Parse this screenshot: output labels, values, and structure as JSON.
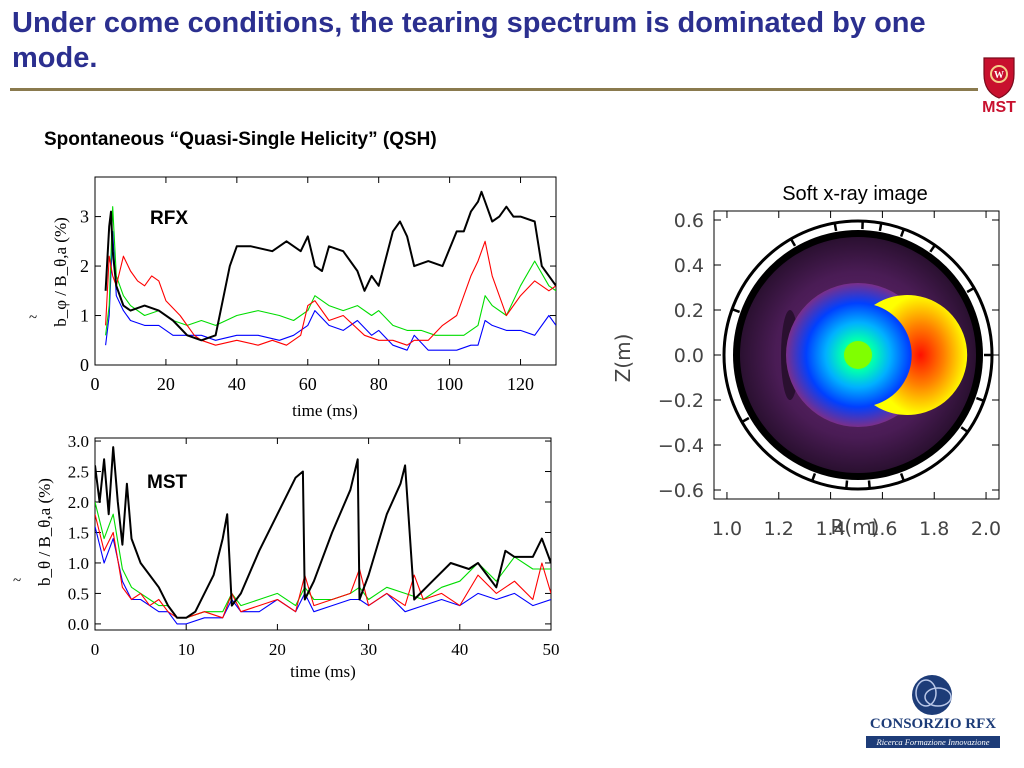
{
  "slide": {
    "title": "Under come conditions, the tearing spectrum is dominated by one mode.",
    "subtitle": "Spontaneous “Quasi-Single Helicity” (QSH)"
  },
  "logos": {
    "mst_label": "MST",
    "consorzio_name": "CONSORZIO RFX",
    "consorzio_tagline": "Ricerca Formazione Innovazione",
    "colors": {
      "badger_red": "#c8102e",
      "consorzio_blue": "#1d3c78"
    }
  },
  "chart_data": [
    {
      "type": "line",
      "label": "RFX",
      "xlabel": "time (ms)",
      "ylabel": "b_φ / B_θ,a (%)",
      "xlim": [
        0,
        130
      ],
      "ylim": [
        0,
        3.8
      ],
      "xticks": [
        "0",
        "20",
        "40",
        "60",
        "80",
        "100",
        "120"
      ],
      "yticks": [
        "0",
        "1",
        "2",
        "3"
      ],
      "colors": [
        "#000000",
        "#ff0000",
        "#00dd00",
        "#0000ff"
      ],
      "series": [
        {
          "x": [
            3,
            4,
            4.5,
            5,
            6,
            8,
            10,
            14,
            18,
            22,
            26,
            30,
            34,
            36,
            38,
            40,
            44,
            50,
            54,
            58,
            60,
            62,
            64,
            66,
            70,
            74,
            76,
            78,
            80,
            84,
            86,
            88,
            90,
            94,
            98,
            102,
            104,
            106,
            108,
            109,
            110,
            112,
            114,
            116,
            118,
            120,
            124,
            126,
            128,
            130
          ],
          "y": [
            1.5,
            2.8,
            3.1,
            2.3,
            1.6,
            1.2,
            1.1,
            1.2,
            1.1,
            0.9,
            0.6,
            0.5,
            0.6,
            1.3,
            2.0,
            2.4,
            2.4,
            2.3,
            2.5,
            2.3,
            2.6,
            2.0,
            1.9,
            2.4,
            2.3,
            1.9,
            1.5,
            1.8,
            1.6,
            2.7,
            2.9,
            2.6,
            2.0,
            2.1,
            2.0,
            2.7,
            2.7,
            3.1,
            3.3,
            3.5,
            3.3,
            2.9,
            3.0,
            3.2,
            3.0,
            3.0,
            2.9,
            2.0,
            1.8,
            1.6
          ]
        },
        {
          "x": [
            3,
            4,
            5,
            6,
            8,
            10,
            12,
            14,
            16,
            18,
            20,
            24,
            28,
            30,
            34,
            40,
            46,
            50,
            54,
            58,
            60,
            62,
            66,
            70,
            76,
            80,
            84,
            88,
            90,
            94,
            98,
            102,
            106,
            108,
            110,
            112,
            116,
            120,
            124,
            128,
            130
          ],
          "y": [
            0.8,
            2.2,
            1.8,
            1.6,
            2.2,
            1.9,
            1.7,
            1.6,
            1.8,
            1.7,
            1.3,
            1.0,
            0.6,
            0.5,
            0.4,
            0.5,
            0.4,
            0.5,
            0.4,
            0.6,
            1.2,
            1.3,
            0.9,
            1.0,
            0.6,
            0.5,
            0.5,
            0.4,
            0.5,
            0.5,
            0.8,
            1.0,
            1.8,
            2.1,
            2.5,
            1.8,
            1.0,
            1.4,
            1.7,
            1.5,
            1.6
          ]
        },
        {
          "x": [
            3,
            4,
            5,
            6,
            8,
            10,
            14,
            18,
            22,
            26,
            30,
            34,
            40,
            46,
            52,
            56,
            60,
            62,
            66,
            70,
            74,
            78,
            80,
            84,
            88,
            92,
            96,
            100,
            104,
            108,
            110,
            112,
            116,
            120,
            124,
            128,
            130
          ],
          "y": [
            0.6,
            1.2,
            3.2,
            1.8,
            1.4,
            1.2,
            1.0,
            1.1,
            0.9,
            0.8,
            0.9,
            0.8,
            1.0,
            1.1,
            1.0,
            0.9,
            1.1,
            1.4,
            1.2,
            1.1,
            1.2,
            1.0,
            1.1,
            0.8,
            0.7,
            0.7,
            0.6,
            0.6,
            0.6,
            0.8,
            1.4,
            1.2,
            1.0,
            1.6,
            2.1,
            1.6,
            1.5
          ]
        },
        {
          "x": [
            3,
            4,
            5,
            6,
            8,
            10,
            14,
            18,
            22,
            26,
            30,
            34,
            40,
            46,
            52,
            56,
            60,
            62,
            66,
            70,
            74,
            78,
            80,
            84,
            88,
            90,
            94,
            98,
            102,
            106,
            108,
            110,
            112,
            116,
            120,
            124,
            128,
            130
          ],
          "y": [
            0.4,
            1.0,
            2.7,
            1.4,
            1.1,
            0.9,
            0.8,
            0.8,
            0.6,
            0.6,
            0.6,
            0.5,
            0.6,
            0.6,
            0.5,
            0.6,
            0.8,
            1.1,
            0.8,
            0.7,
            0.9,
            0.6,
            0.7,
            0.4,
            0.3,
            0.6,
            0.3,
            0.3,
            0.3,
            0.4,
            0.4,
            0.9,
            0.8,
            0.7,
            0.7,
            0.6,
            1.0,
            0.8
          ]
        }
      ]
    },
    {
      "type": "line",
      "label": "MST",
      "xlabel": "time (ms)",
      "ylabel": "b_θ / B_θ,a (%)",
      "xlim": [
        0,
        50
      ],
      "ylim": [
        -0.1,
        3.05
      ],
      "xticks": [
        "0",
        "10",
        "20",
        "30",
        "40",
        "50"
      ],
      "yticks": [
        "0.0",
        "0.5",
        "1.0",
        "1.5",
        "2.0",
        "2.5",
        "3.0"
      ],
      "colors": [
        "#000000",
        "#ff0000",
        "#00dd00",
        "#0000ff"
      ],
      "series": [
        {
          "x": [
            0,
            0.5,
            1,
            1.5,
            2,
            2.5,
            3,
            3.5,
            4,
            5,
            6,
            7,
            8,
            9,
            10,
            11,
            13,
            14,
            14.5,
            15,
            16,
            18,
            20,
            22,
            22.8,
            23,
            24,
            26,
            28,
            28.8,
            29,
            30,
            32,
            33.5,
            34,
            35,
            37,
            39,
            41,
            42,
            44,
            45,
            46,
            48,
            49,
            50
          ],
          "y": [
            2.6,
            2.0,
            2.7,
            1.8,
            2.9,
            2.0,
            1.3,
            2.3,
            1.4,
            1.0,
            0.8,
            0.6,
            0.3,
            0.1,
            0.1,
            0.2,
            0.8,
            1.4,
            1.8,
            0.3,
            0.5,
            1.2,
            1.8,
            2.4,
            2.5,
            0.4,
            0.7,
            1.5,
            2.2,
            2.7,
            0.4,
            0.8,
            1.8,
            2.3,
            2.6,
            0.4,
            0.7,
            1.0,
            0.9,
            1.0,
            0.6,
            1.2,
            1.1,
            1.1,
            1.4,
            1.0
          ]
        },
        {
          "x": [
            0,
            1,
            2,
            3,
            4,
            5,
            6,
            7,
            8,
            9,
            10,
            12,
            14,
            15,
            16,
            18,
            20,
            22,
            23,
            24,
            26,
            28,
            29,
            30,
            32,
            34,
            35,
            36,
            38,
            40,
            42,
            44,
            46,
            48,
            49,
            50
          ],
          "y": [
            1.8,
            1.2,
            1.5,
            0.6,
            0.4,
            0.5,
            0.3,
            0.4,
            0.2,
            0.1,
            0.1,
            0.2,
            0.1,
            0.5,
            0.2,
            0.3,
            0.4,
            0.2,
            0.8,
            0.3,
            0.4,
            0.5,
            0.9,
            0.3,
            0.5,
            0.3,
            0.8,
            0.4,
            0.5,
            0.3,
            0.8,
            0.5,
            0.7,
            0.4,
            1.0,
            0.5
          ]
        },
        {
          "x": [
            0,
            1,
            2,
            3,
            4,
            5,
            6,
            7,
            8,
            9,
            10,
            12,
            14,
            15,
            16,
            18,
            20,
            22,
            23,
            24,
            26,
            28,
            29,
            30,
            32,
            34,
            36,
            38,
            40,
            42,
            44,
            46,
            48,
            50
          ],
          "y": [
            2.0,
            1.4,
            1.8,
            0.9,
            0.6,
            0.5,
            0.4,
            0.3,
            0.3,
            0.1,
            0.1,
            0.2,
            0.2,
            0.5,
            0.3,
            0.4,
            0.5,
            0.3,
            0.6,
            0.4,
            0.4,
            0.5,
            0.6,
            0.4,
            0.6,
            0.5,
            0.4,
            0.6,
            0.7,
            1.0,
            0.7,
            1.1,
            0.9,
            0.9
          ]
        },
        {
          "x": [
            0,
            1,
            2,
            3,
            4,
            5,
            6,
            7,
            8,
            9,
            10,
            12,
            14,
            15,
            16,
            18,
            20,
            22,
            23,
            24,
            26,
            28,
            29,
            30,
            32,
            34,
            36,
            38,
            40,
            42,
            44,
            46,
            48,
            50
          ],
          "y": [
            1.6,
            1.0,
            1.4,
            0.7,
            0.4,
            0.4,
            0.3,
            0.2,
            0.2,
            0.0,
            0.0,
            0.1,
            0.1,
            0.4,
            0.2,
            0.2,
            0.4,
            0.2,
            0.5,
            0.2,
            0.3,
            0.4,
            0.4,
            0.3,
            0.5,
            0.2,
            0.3,
            0.4,
            0.3,
            0.5,
            0.4,
            0.5,
            0.3,
            0.4
          ]
        }
      ]
    },
    {
      "type": "heatmap",
      "title": "Soft x-ray image",
      "xlabel": "R(m)",
      "ylabel": "Z(m)",
      "xlim": [
        0.95,
        2.05
      ],
      "ylim": [
        -0.64,
        0.64
      ],
      "xticks": [
        "1.0",
        "1.2",
        "1.4",
        "1.6",
        "1.8",
        "2.0"
      ],
      "yticks": [
        "0.6",
        "0.4",
        "0.2",
        "0.0",
        "−0.2",
        "−0.4",
        "−0.6"
      ],
      "vessel_center": [
        1.5,
        0.0
      ],
      "vessel_radius": 0.52,
      "emission_center": [
        1.5,
        0.0
      ],
      "crescent_center": [
        1.7,
        0.0
      ],
      "colormap": [
        "#2a1030",
        "#5a1f6a",
        "#7a2f8a",
        "#0040ff",
        "#00b0ff",
        "#00ffb0",
        "#80ff00",
        "#ffff00",
        "#ff8000",
        "#ff1000"
      ]
    }
  ]
}
